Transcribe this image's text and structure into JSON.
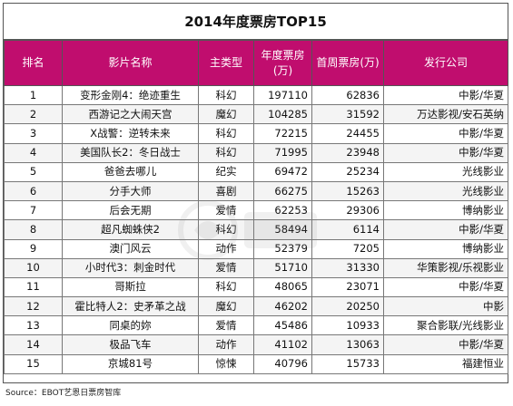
{
  "title": "2014年度票房TOP15",
  "headers": [
    "排名",
    "影片名称",
    "主类型",
    "年度票房(万)",
    "首周票房(万)",
    "发行公司"
  ],
  "rows": [
    {
      "rank": "1",
      "film": "变形金刚4：绝迹重生",
      "genre": "科幻",
      "annual": "197110",
      "first_week": "62836",
      "distributor": "中影/华夏"
    },
    {
      "rank": "2",
      "film": "西游记之大闹天宫",
      "genre": "魔幻",
      "annual": "104285",
      "first_week": "31592",
      "distributor": "万达影视/安石英纳"
    },
    {
      "rank": "3",
      "film": "X战警：逆转未来",
      "genre": "科幻",
      "annual": "72215",
      "first_week": "24455",
      "distributor": "中影/华夏"
    },
    {
      "rank": "4",
      "film": "美国队长2：冬日战士",
      "genre": "科幻",
      "annual": "71995",
      "first_week": "23948",
      "distributor": "中影/华夏"
    },
    {
      "rank": "5",
      "film": "爸爸去哪儿",
      "genre": "纪实",
      "annual": "69472",
      "first_week": "25234",
      "distributor": "光线影业"
    },
    {
      "rank": "6",
      "film": "分手大师",
      "genre": "喜剧",
      "annual": "66275",
      "first_week": "15263",
      "distributor": "光线影业"
    },
    {
      "rank": "7",
      "film": "后会无期",
      "genre": "爱情",
      "annual": "62253",
      "first_week": "29306",
      "distributor": "博纳影业"
    },
    {
      "rank": "8",
      "film": "超凡蜘蛛侠2",
      "genre": "科幻",
      "annual": "58494",
      "first_week": "6114",
      "distributor": "中影/华夏"
    },
    {
      "rank": "9",
      "film": "澳门风云",
      "genre": "动作",
      "annual": "52379",
      "first_week": "7205",
      "distributor": "博纳影业"
    },
    {
      "rank": "10",
      "film": "小时代3：刺金时代",
      "genre": "爱情",
      "annual": "51710",
      "first_week": "31330",
      "distributor": "华策影视/乐视影业"
    },
    {
      "rank": "11",
      "film": "哥斯拉",
      "genre": "科幻",
      "annual": "48065",
      "first_week": "23071",
      "distributor": "中影/华夏"
    },
    {
      "rank": "12",
      "film": "霍比特人2：史矛革之战",
      "genre": "魔幻",
      "annual": "46202",
      "first_week": "20250",
      "distributor": "中影"
    },
    {
      "rank": "13",
      "film": "同桌的妳",
      "genre": "爱情",
      "annual": "45486",
      "first_week": "10933",
      "distributor": "聚合影联/光线影业"
    },
    {
      "rank": "14",
      "film": "极品飞车",
      "genre": "动作",
      "annual": "41102",
      "first_week": "13063",
      "distributor": "中影/华夏"
    },
    {
      "rank": "15",
      "film": "京城81号",
      "genre": "惊悚",
      "annual": "40796",
      "first_week": "15733",
      "distributor": "福建恒业"
    }
  ],
  "source": "Source：EBOT艺恩日票房智库",
  "colors": {
    "header_bg": "#c00d6e",
    "header_text": "#ffffff"
  }
}
